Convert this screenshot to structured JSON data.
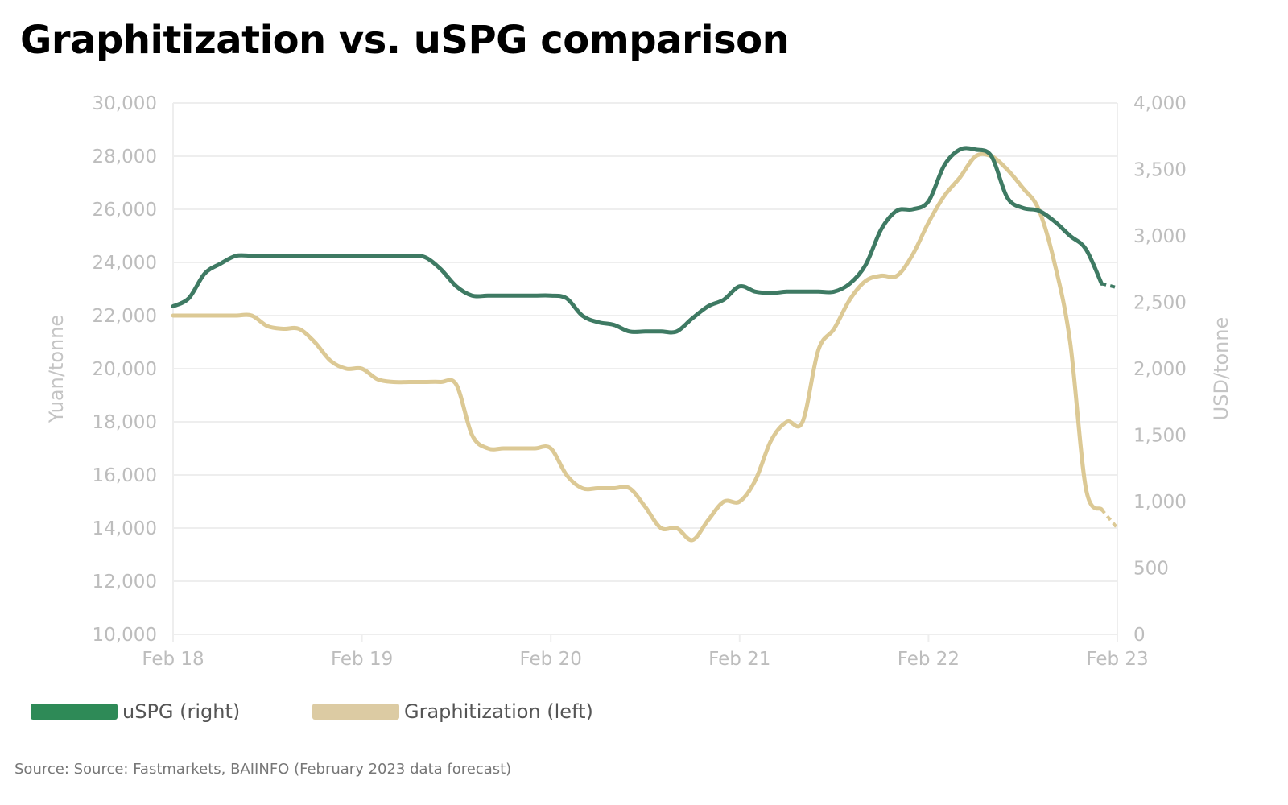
{
  "colors": {
    "uspg": "#3e7a63",
    "uspg_legend": "#2e8a57",
    "graphitization": "#dcc995",
    "graphitization_legend": "#dccba3",
    "grid": "#eeeeee",
    "tick": "#bdbdbd"
  },
  "chart_data": {
    "type": "line",
    "title": "Graphitization vs. uSPG comparison",
    "source": "Source: Source: Fastmarkets, BAIINFO (February 2023 data forecast)",
    "x_ticks": [
      "Feb 18",
      "Feb 19",
      "Feb 20",
      "Feb 21",
      "Feb 22",
      "Feb 23"
    ],
    "x_range": [
      "2018-02",
      "2023-02"
    ],
    "x": [
      "2018-02",
      "2018-03",
      "2018-04",
      "2018-05",
      "2018-06",
      "2018-07",
      "2018-08",
      "2018-09",
      "2018-10",
      "2018-11",
      "2018-12",
      "2019-01",
      "2019-02",
      "2019-03",
      "2019-04",
      "2019-05",
      "2019-06",
      "2019-07",
      "2019-08",
      "2019-09",
      "2019-10",
      "2019-11",
      "2019-12",
      "2020-01",
      "2020-02",
      "2020-03",
      "2020-04",
      "2020-05",
      "2020-06",
      "2020-07",
      "2020-08",
      "2020-09",
      "2020-10",
      "2020-11",
      "2020-12",
      "2021-01",
      "2021-02",
      "2021-03",
      "2021-04",
      "2021-05",
      "2021-06",
      "2021-07",
      "2021-08",
      "2021-09",
      "2021-10",
      "2021-11",
      "2021-12",
      "2022-01",
      "2022-02",
      "2022-03",
      "2022-04",
      "2022-05",
      "2022-06",
      "2022-07",
      "2022-08",
      "2022-09",
      "2022-10",
      "2022-11",
      "2022-12",
      "2023-01",
      "2023-02"
    ],
    "left_axis": {
      "label": "Yuan/tonne",
      "range": [
        10000,
        30000
      ],
      "ticks": [
        "10,000",
        "12,000",
        "14,000",
        "16,000",
        "18,000",
        "20,000",
        "22,000",
        "24,000",
        "26,000",
        "28,000",
        "30,000"
      ]
    },
    "right_axis": {
      "label": "USD/tonne",
      "range": [
        0,
        4000
      ],
      "ticks": [
        "0",
        "500",
        "1,000",
        "1,500",
        "2,000",
        "2,500",
        "3,000",
        "3,500",
        "4,000"
      ]
    },
    "grid": true,
    "legend_position": "bottom-left",
    "forecast_from": "2023-01",
    "series": [
      {
        "name": "uSPG (right)",
        "axis": "right",
        "values": [
          2470,
          2530,
          2715,
          2790,
          2850,
          2850,
          2850,
          2850,
          2850,
          2850,
          2850,
          2850,
          2850,
          2850,
          2850,
          2850,
          2840,
          2750,
          2620,
          2550,
          2550,
          2550,
          2550,
          2550,
          2550,
          2530,
          2400,
          2350,
          2330,
          2280,
          2280,
          2280,
          2280,
          2380,
          2470,
          2520,
          2620,
          2580,
          2570,
          2580,
          2580,
          2580,
          2580,
          2640,
          2780,
          3050,
          3190,
          3200,
          3260,
          3530,
          3650,
          3650,
          3600,
          3290,
          3210,
          3190,
          3110,
          3000,
          2900,
          2640,
          2610
        ]
      },
      {
        "name": "Graphitization (left)",
        "axis": "left",
        "values": [
          22000,
          22000,
          22000,
          22000,
          22000,
          22000,
          21600,
          21500,
          21500,
          21000,
          20300,
          20000,
          20000,
          19600,
          19500,
          19500,
          19500,
          19500,
          19400,
          17500,
          17000,
          17000,
          17000,
          17000,
          17000,
          16000,
          15500,
          15500,
          15500,
          15500,
          14800,
          14000,
          14000,
          13550,
          14300,
          15000,
          15000,
          15800,
          17300,
          18000,
          18000,
          20700,
          21500,
          22600,
          23300,
          23500,
          23500,
          24300,
          25500,
          26500,
          27200,
          28000,
          28000,
          27500,
          26800,
          26000,
          24000,
          21000,
          15500,
          14700,
          14000
        ]
      }
    ]
  }
}
